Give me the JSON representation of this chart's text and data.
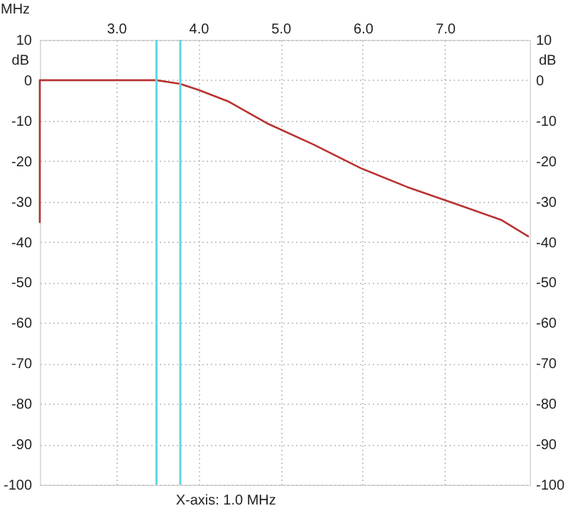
{
  "chart_data": {
    "type": "line",
    "xlabel": "MHz",
    "ylabel": "dB",
    "y2label": "dB",
    "x": [
      2.07,
      2.07,
      2.5,
      3.0,
      3.49,
      3.78,
      4.0,
      4.37,
      4.83,
      5.4,
      5.97,
      6.54,
      7.12,
      7.69,
      8.02
    ],
    "series": [
      {
        "color": "#b83232",
        "values": [
          -35.3,
          0,
          0,
          0,
          0,
          -0.9,
          -2.4,
          -5.3,
          -10.6,
          -15.9,
          -21.7,
          -26.4,
          -30.5,
          -34.6,
          -38.7
        ]
      }
    ],
    "xlim": [
      2.07,
      8.03
    ],
    "xticks": [
      {
        "value": 3,
        "label": "3.0"
      },
      {
        "value": 4,
        "label": "4.0"
      },
      {
        "value": 5,
        "label": "5.0"
      },
      {
        "value": 6,
        "label": "6.0"
      },
      {
        "value": 7,
        "label": "7.0"
      }
    ],
    "ylim": [
      -100,
      10
    ],
    "yticks": [
      -100,
      -90,
      -80,
      -70,
      -60,
      -50,
      -40,
      -30,
      -20,
      -10,
      0,
      10
    ],
    "y2lim": [
      -100,
      10
    ],
    "y2ticks": [
      -100,
      -90,
      -80,
      -70,
      -60,
      -50,
      -40,
      -30,
      -20,
      -10,
      0,
      10
    ],
    "ref_lines": [
      {
        "axis": "x",
        "value": 3.49,
        "color": "#5fd6e2"
      },
      {
        "axis": "x",
        "value": 3.78,
        "color": "#5fd6e2"
      }
    ],
    "annotations": [
      "X-axis: 1.0 MHz"
    ],
    "grid": true,
    "marker": "none",
    "line_style": "solid"
  }
}
